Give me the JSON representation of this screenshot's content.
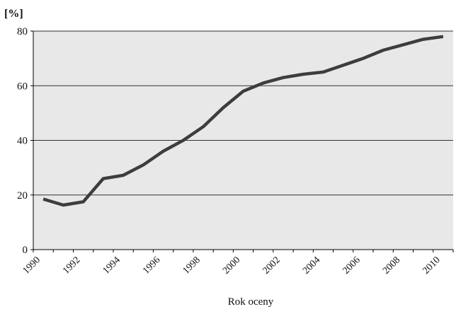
{
  "chart_data": {
    "type": "line",
    "title": "",
    "ylabel": "[%]",
    "xlabel": "Rok oceny",
    "ylim": [
      0,
      80
    ],
    "xlim": [
      1990,
      2011
    ],
    "grid": true,
    "yticks": [
      0,
      20,
      40,
      60,
      80
    ],
    "xticks": [
      "1990",
      "1992",
      "1994",
      "1996",
      "1998",
      "2000",
      "2002",
      "2004",
      "2006",
      "2008",
      "2010"
    ],
    "series": [
      {
        "x": [
          1990.5,
          1991.5,
          1992.5,
          1993.5,
          1994.5,
          1995.5,
          1996.5,
          1997.5,
          1998.5,
          1999.5,
          2000.5,
          2001.5,
          2002.5,
          2003.5,
          2004.5,
          2005.5,
          2006.5,
          2007.5,
          2008.5,
          2009.5,
          2010.5
        ],
        "values": [
          18.5,
          16.3,
          17.5,
          26,
          27.2,
          31,
          36,
          40,
          45,
          52,
          58,
          61,
          63,
          64.2,
          65,
          67.5,
          70,
          73,
          75,
          77,
          78
        ],
        "color": "#3d3d3d"
      }
    ],
    "colors": {
      "plot_background": "#e8e8e8",
      "gridline": "#333333",
      "line": "#3d3d3d",
      "axis": "#000000"
    }
  }
}
